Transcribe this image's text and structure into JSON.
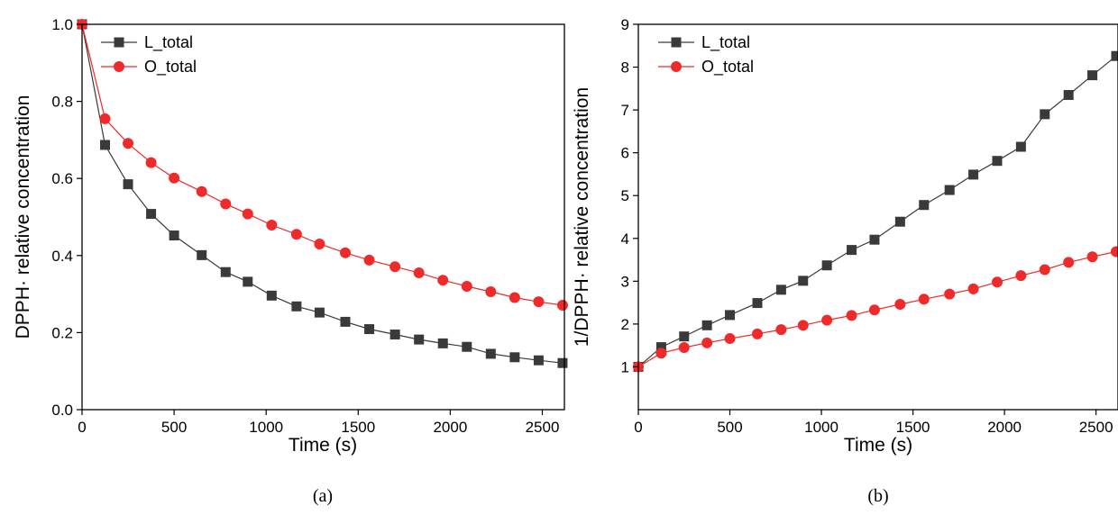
{
  "colors": {
    "L_total": "#3a3a3a",
    "O_total": "#ee2a2a",
    "axis": "#000000"
  },
  "chart_data": [
    {
      "type": "line",
      "panel_label": "(a)",
      "xlabel": "Time (s)",
      "ylabel": "DPPH· relative concentration",
      "xlim": [
        0,
        2620
      ],
      "ylim": [
        0,
        1.0
      ],
      "xticks": [
        0,
        500,
        1000,
        1500,
        2000,
        2500
      ],
      "yticks": [
        0.0,
        0.2,
        0.4,
        0.6,
        0.8,
        1.0
      ],
      "ytick_labels": [
        "0.0",
        "0.2",
        "0.4",
        "0.6",
        "0.8",
        "1.0"
      ],
      "legend_position": "top-left",
      "series": [
        {
          "name": "L_total",
          "marker": "square",
          "x": [
            0,
            125,
            250,
            375,
            500,
            650,
            780,
            900,
            1030,
            1165,
            1290,
            1430,
            1560,
            1700,
            1830,
            1960,
            2090,
            2220,
            2350,
            2480,
            2610
          ],
          "y": [
            1.0,
            0.687,
            0.585,
            0.508,
            0.452,
            0.401,
            0.357,
            0.332,
            0.296,
            0.268,
            0.252,
            0.228,
            0.209,
            0.195,
            0.182,
            0.172,
            0.163,
            0.145,
            0.136,
            0.128,
            0.121
          ]
        },
        {
          "name": "O_total",
          "marker": "circle",
          "x": [
            0,
            125,
            250,
            375,
            500,
            650,
            780,
            900,
            1030,
            1165,
            1290,
            1430,
            1560,
            1700,
            1830,
            1960,
            2090,
            2220,
            2350,
            2480,
            2610
          ],
          "y": [
            1.0,
            0.755,
            0.691,
            0.641,
            0.601,
            0.566,
            0.534,
            0.508,
            0.479,
            0.455,
            0.43,
            0.407,
            0.388,
            0.371,
            0.355,
            0.336,
            0.32,
            0.306,
            0.291,
            0.28,
            0.271
          ]
        }
      ]
    },
    {
      "type": "line",
      "panel_label": "(b)",
      "xlabel": "Time (s)",
      "ylabel": "1/DPPH· relative concentration",
      "xlim": [
        0,
        2620
      ],
      "ylim": [
        0,
        9
      ],
      "xticks": [
        0,
        500,
        1000,
        1500,
        2000,
        2500
      ],
      "yticks": [
        1,
        2,
        3,
        4,
        5,
        6,
        7,
        8,
        9
      ],
      "ytick_labels": [
        "1",
        "2",
        "3",
        "4",
        "5",
        "6",
        "7",
        "8",
        "9"
      ],
      "legend_position": "top-left",
      "series": [
        {
          "name": "L_total",
          "marker": "square",
          "x": [
            0,
            125,
            250,
            375,
            500,
            650,
            780,
            900,
            1030,
            1165,
            1290,
            1430,
            1560,
            1700,
            1830,
            1960,
            2090,
            2220,
            2350,
            2480,
            2610
          ],
          "y": [
            1.0,
            1.46,
            1.71,
            1.97,
            2.21,
            2.49,
            2.8,
            3.01,
            3.37,
            3.73,
            3.97,
            4.39,
            4.78,
            5.13,
            5.49,
            5.81,
            6.14,
            6.9,
            7.35,
            7.81,
            8.26
          ]
        },
        {
          "name": "O_total",
          "marker": "circle",
          "x": [
            0,
            125,
            250,
            375,
            500,
            650,
            780,
            900,
            1030,
            1165,
            1290,
            1430,
            1560,
            1700,
            1830,
            1960,
            2090,
            2220,
            2350,
            2480,
            2610
          ],
          "y": [
            1.0,
            1.32,
            1.45,
            1.56,
            1.66,
            1.77,
            1.87,
            1.97,
            2.09,
            2.2,
            2.33,
            2.46,
            2.58,
            2.7,
            2.82,
            2.98,
            3.13,
            3.27,
            3.44,
            3.57,
            3.69
          ]
        }
      ]
    }
  ]
}
